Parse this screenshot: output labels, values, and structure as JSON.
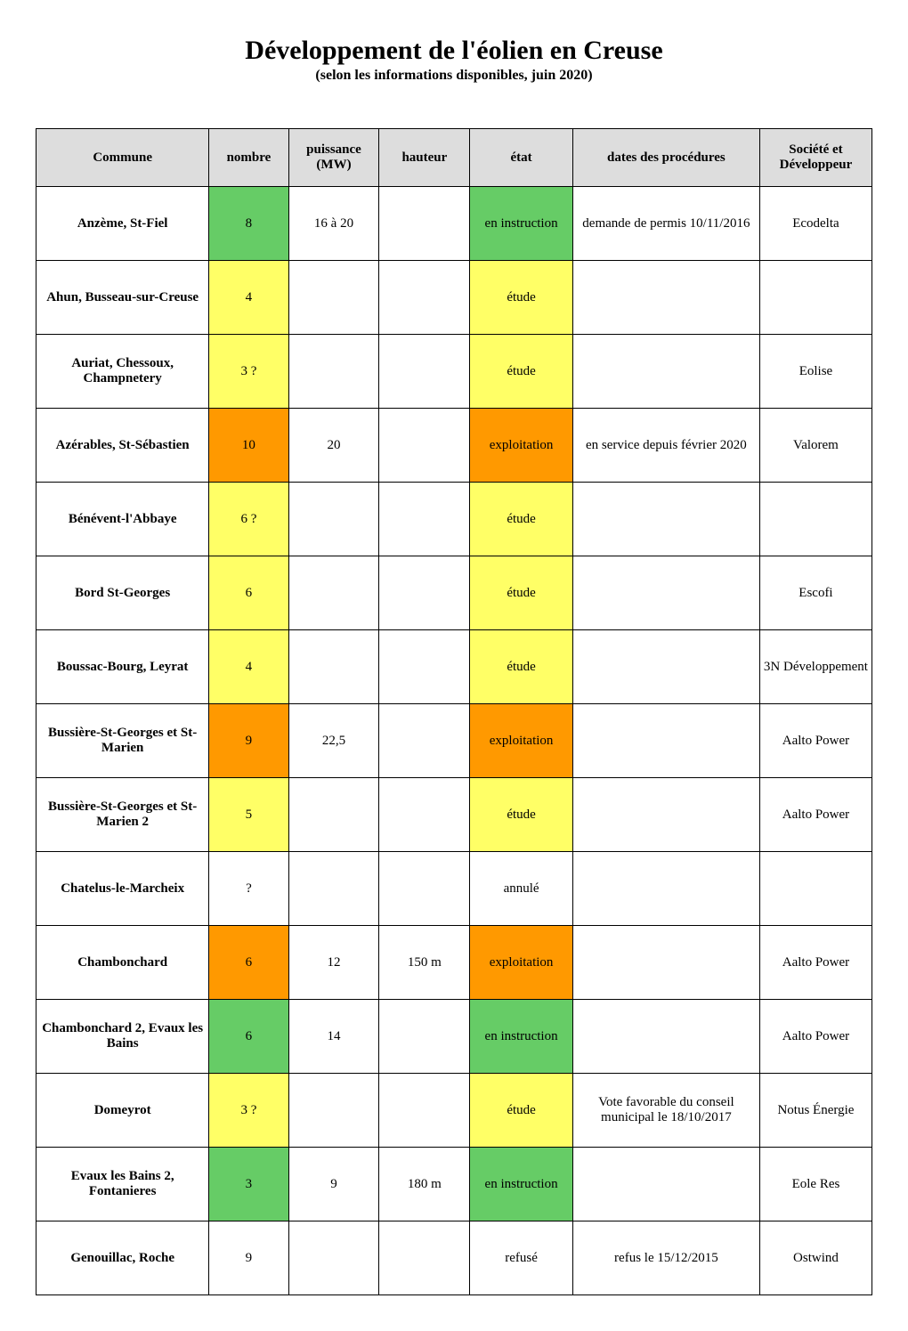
{
  "title": "Développement de l'éolien en Creuse",
  "subtitle": "(selon les informations disponibles, juin 2020)",
  "colors": {
    "header_bg": "#dddddd",
    "yellow": "#ffff66",
    "green": "#66cc66",
    "orange": "#ff9900",
    "white": "#ffffff",
    "border": "#000000"
  },
  "columns": [
    {
      "key": "commune",
      "label": "Commune"
    },
    {
      "key": "nombre",
      "label": "nombre"
    },
    {
      "key": "puiss",
      "label": "puissance (MW)"
    },
    {
      "key": "hauteur",
      "label": "hauteur"
    },
    {
      "key": "etat",
      "label": "état"
    },
    {
      "key": "dates",
      "label": "dates des procédures"
    },
    {
      "key": "dev",
      "label": "Société et Développeur"
    }
  ],
  "rows": [
    {
      "commune": "Anzème, St-Fiel",
      "nombre": "8",
      "nombre_color": "green",
      "puiss": "16 à 20",
      "hauteur": "",
      "etat": "en instruction",
      "etat_color": "green",
      "dates": "demande de permis 10/11/2016",
      "dev": "Ecodelta"
    },
    {
      "commune": "Ahun, Busseau-sur-Creuse",
      "nombre": "4",
      "nombre_color": "yellow",
      "puiss": "",
      "hauteur": "",
      "etat": "étude",
      "etat_color": "yellow",
      "dates": "",
      "dev": ""
    },
    {
      "commune": "Auriat, Chessoux, Champnetery",
      "nombre": "3 ?",
      "nombre_color": "yellow",
      "puiss": "",
      "hauteur": "",
      "etat": "étude",
      "etat_color": "yellow",
      "dates": "",
      "dev": "Eolise"
    },
    {
      "commune": "Azérables, St-Sébastien",
      "nombre": "10",
      "nombre_color": "orange",
      "puiss": "20",
      "hauteur": "",
      "etat": "exploitation",
      "etat_color": "orange",
      "dates": "en service depuis février 2020",
      "dev": "Valorem"
    },
    {
      "commune": "Bénévent-l'Abbaye",
      "nombre": "6 ?",
      "nombre_color": "yellow",
      "puiss": "",
      "hauteur": "",
      "etat": "étude",
      "etat_color": "yellow",
      "dates": "",
      "dev": ""
    },
    {
      "commune": "Bord St-Georges",
      "nombre": "6",
      "nombre_color": "yellow",
      "puiss": "",
      "hauteur": "",
      "etat": "étude",
      "etat_color": "yellow",
      "dates": "",
      "dev": "Escofi"
    },
    {
      "commune": "Boussac-Bourg, Leyrat",
      "nombre": "4",
      "nombre_color": "yellow",
      "puiss": "",
      "hauteur": "",
      "etat": "étude",
      "etat_color": "yellow",
      "dates": "",
      "dev": "3N Développement"
    },
    {
      "commune": "Bussière-St-Georges et St-Marien",
      "nombre": "9",
      "nombre_color": "orange",
      "puiss": "22,5",
      "hauteur": "",
      "etat": "exploitation",
      "etat_color": "orange",
      "dates": "",
      "dev": "Aalto Power"
    },
    {
      "commune": "Bussière-St-Georges et St-Marien 2",
      "nombre": "5",
      "nombre_color": "yellow",
      "puiss": "",
      "hauteur": "",
      "etat": "étude",
      "etat_color": "yellow",
      "dates": "",
      "dev": "Aalto Power"
    },
    {
      "commune": "Chatelus-le-Marcheix",
      "nombre": "?",
      "nombre_color": "white",
      "puiss": "",
      "hauteur": "",
      "etat": "annulé",
      "etat_color": "white",
      "dates": "",
      "dev": ""
    },
    {
      "commune": "Chambonchard",
      "nombre": "6",
      "nombre_color": "orange",
      "puiss": "12",
      "hauteur": "150 m",
      "etat": "exploitation",
      "etat_color": "orange",
      "dates": "",
      "dev": "Aalto Power"
    },
    {
      "commune": "Chambonchard 2,  Evaux les Bains",
      "nombre": "6",
      "nombre_color": "green",
      "puiss": "14",
      "hauteur": "",
      "etat": "en instruction",
      "etat_color": "green",
      "dates": "",
      "dev": "Aalto Power"
    },
    {
      "commune": "Domeyrot",
      "nombre": "3 ?",
      "nombre_color": "yellow",
      "puiss": "",
      "hauteur": "",
      "etat": "étude",
      "etat_color": "yellow",
      "dates": "Vote favorable du conseil municipal le 18/10/2017",
      "dev": "Notus Énergie"
    },
    {
      "commune": "Evaux les Bains 2, Fontanieres",
      "nombre": "3",
      "nombre_color": "green",
      "puiss": "9",
      "hauteur": "180 m",
      "etat": "en instruction",
      "etat_color": "green",
      "dates": "",
      "dev": "Eole Res"
    },
    {
      "commune": "Genouillac, Roche",
      "nombre": "9",
      "nombre_color": "white",
      "puiss": "",
      "hauteur": "",
      "etat": "refusé",
      "etat_color": "white",
      "dates": "refus le 15/12/2015",
      "dev": "Ostwind"
    }
  ]
}
